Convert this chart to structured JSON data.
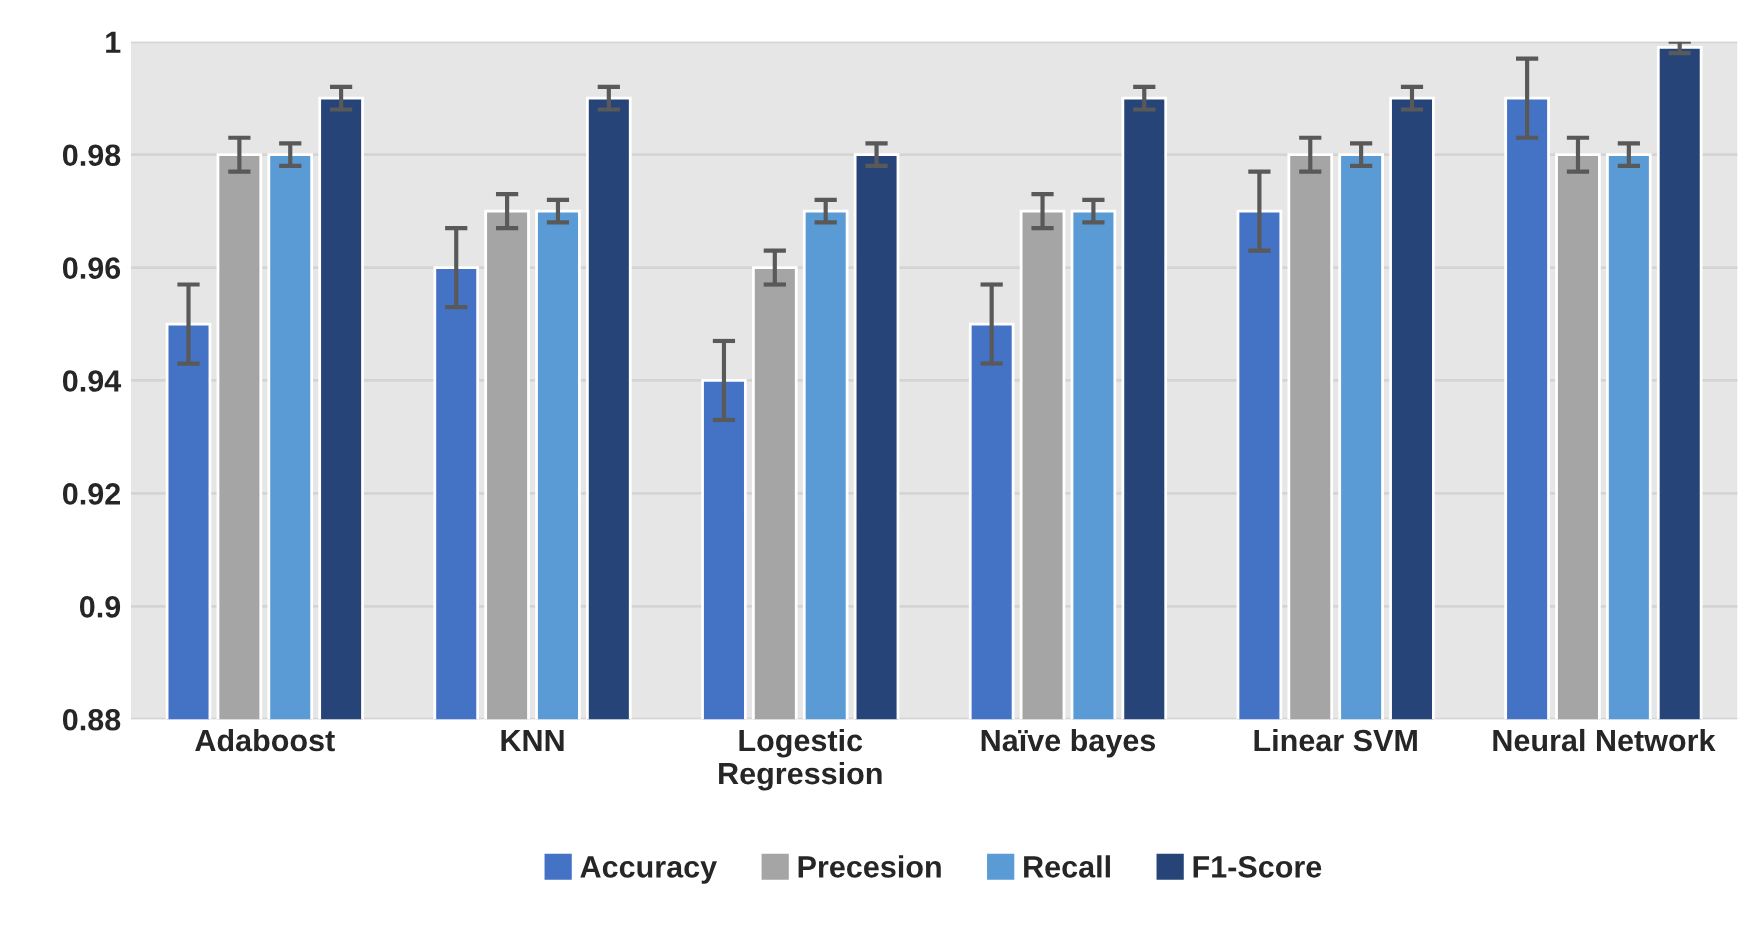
{
  "chart_data": {
    "type": "bar",
    "categories": [
      "Adaboost",
      "KNN",
      "Logestic\nRegression",
      "Naïve bayes",
      "Linear SVM",
      "Neural Network"
    ],
    "series": [
      {
        "name": "Accuracy",
        "color": "#4472c4",
        "values": [
          0.95,
          0.96,
          0.94,
          0.95,
          0.97,
          0.99
        ],
        "errors": [
          0.007,
          0.007,
          0.007,
          0.007,
          0.007,
          0.007
        ]
      },
      {
        "name": "Precesion",
        "color": "#a5a5a5",
        "values": [
          0.98,
          0.97,
          0.96,
          0.97,
          0.98,
          0.98
        ],
        "errors": [
          0.003,
          0.003,
          0.003,
          0.003,
          0.003,
          0.003
        ]
      },
      {
        "name": "Recall",
        "color": "#5b9bd5",
        "values": [
          0.98,
          0.97,
          0.97,
          0.97,
          0.98,
          0.98
        ],
        "errors": [
          0.002,
          0.002,
          0.002,
          0.002,
          0.002,
          0.002
        ]
      },
      {
        "name": "F1-Score",
        "color": "#264478",
        "values": [
          0.99,
          0.99,
          0.98,
          0.99,
          0.99,
          0.999
        ],
        "errors": [
          0.002,
          0.002,
          0.002,
          0.002,
          0.002,
          0.001
        ]
      }
    ],
    "ylim": [
      0.88,
      1
    ],
    "yticks": [
      0.88,
      0.9,
      0.92,
      0.94,
      0.96,
      0.98,
      1
    ],
    "grid": "y",
    "legend": "bottom"
  }
}
